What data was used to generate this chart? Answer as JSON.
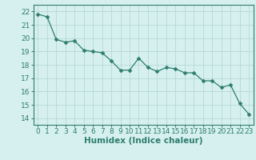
{
  "xlabel": "Humidex (Indice chaleur)",
  "ylabel": "",
  "x": [
    0,
    1,
    2,
    3,
    4,
    5,
    6,
    7,
    8,
    9,
    10,
    11,
    12,
    13,
    14,
    15,
    16,
    17,
    18,
    19,
    20,
    21,
    22,
    23
  ],
  "y": [
    21.8,
    21.6,
    19.9,
    19.7,
    19.8,
    19.1,
    19.0,
    18.9,
    18.3,
    17.6,
    17.6,
    18.5,
    17.8,
    17.5,
    17.8,
    17.7,
    17.4,
    17.4,
    16.8,
    16.8,
    16.3,
    16.5,
    15.1,
    14.3
  ],
  "line_color": "#2e7d6e",
  "marker": "D",
  "marker_size": 2.5,
  "bg_color": "#d6f0f0",
  "grid_color": "#b8d8d8",
  "ylim": [
    13.5,
    22.5
  ],
  "xlim": [
    -0.5,
    23.5
  ],
  "yticks": [
    14,
    15,
    16,
    17,
    18,
    19,
    20,
    21,
    22
  ],
  "xticks": [
    0,
    1,
    2,
    3,
    4,
    5,
    6,
    7,
    8,
    9,
    10,
    11,
    12,
    13,
    14,
    15,
    16,
    17,
    18,
    19,
    20,
    21,
    22,
    23
  ],
  "tick_label_fontsize": 6.5,
  "xlabel_fontsize": 7.5,
  "axis_color": "#2e7d6e",
  "tick_color": "#2e7d6e"
}
